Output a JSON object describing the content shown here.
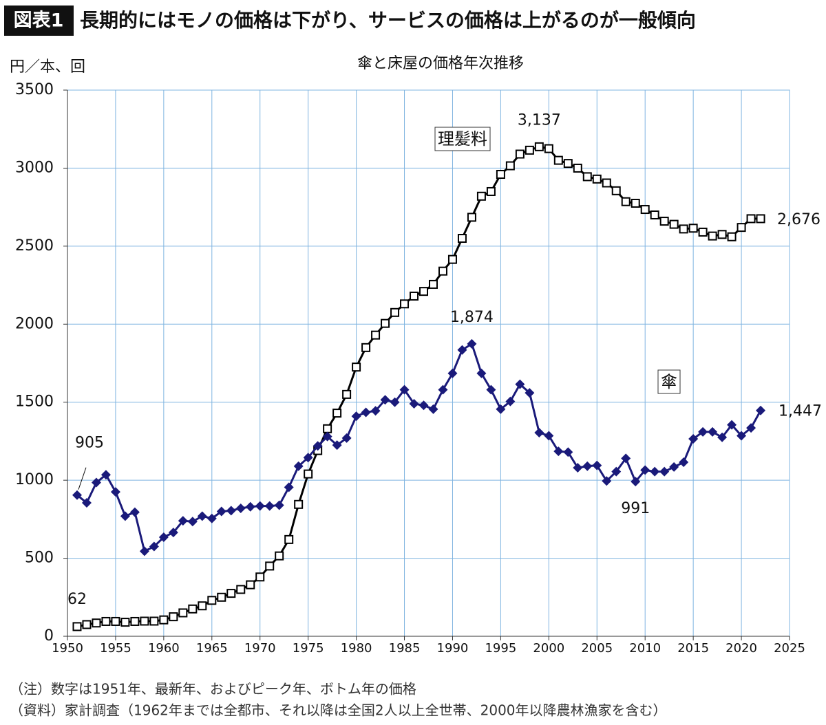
{
  "header": {
    "badge": "図表1",
    "title": "長期的にはモノの価格は下がり、サービスの価格は上がるのが一般傾向"
  },
  "chart_data": {
    "type": "line",
    "title": "傘と床屋の価格年次推移",
    "y_label": "円／本、回",
    "x": [
      1951,
      1952,
      1953,
      1954,
      1955,
      1956,
      1957,
      1958,
      1959,
      1960,
      1961,
      1962,
      1963,
      1964,
      1965,
      1966,
      1967,
      1968,
      1969,
      1970,
      1971,
      1972,
      1973,
      1974,
      1975,
      1976,
      1977,
      1978,
      1979,
      1980,
      1981,
      1982,
      1983,
      1984,
      1985,
      1986,
      1987,
      1988,
      1989,
      1990,
      1991,
      1992,
      1993,
      1994,
      1995,
      1996,
      1997,
      1998,
      1999,
      2000,
      2001,
      2002,
      2003,
      2004,
      2005,
      2006,
      2007,
      2008,
      2009,
      2010,
      2011,
      2012,
      2013,
      2014,
      2015,
      2016,
      2017,
      2018,
      2019,
      2020,
      2021,
      2022
    ],
    "series": [
      {
        "name": "理髪料",
        "color": "#000000",
        "marker": "square",
        "values": [
          62,
          75,
          85,
          95,
          95,
          90,
          95,
          97,
          97,
          105,
          125,
          150,
          175,
          195,
          230,
          250,
          275,
          300,
          330,
          380,
          450,
          515,
          620,
          845,
          1040,
          1190,
          1330,
          1430,
          1550,
          1725,
          1850,
          1930,
          2005,
          2075,
          2130,
          2180,
          2210,
          2255,
          2340,
          2415,
          2550,
          2685,
          2820,
          2850,
          2960,
          3015,
          3090,
          3115,
          3137,
          3125,
          3050,
          3030,
          3000,
          2945,
          2930,
          2905,
          2855,
          2785,
          2775,
          2735,
          2700,
          2660,
          2640,
          2610,
          2615,
          2590,
          2565,
          2575,
          2560,
          2620,
          2676,
          2676
        ],
        "value_labels": [
          "62",
          null,
          null,
          null,
          null,
          null,
          null,
          null,
          null,
          null,
          null,
          null,
          null,
          null,
          null,
          null,
          null,
          null,
          null,
          null,
          null,
          null,
          null,
          null,
          null,
          null,
          null,
          null,
          null,
          null,
          null,
          null,
          null,
          null,
          null,
          null,
          null,
          null,
          null,
          null,
          null,
          null,
          null,
          null,
          null,
          null,
          null,
          null,
          "3,137",
          null,
          null,
          null,
          null,
          null,
          null,
          null,
          null,
          null,
          null,
          null,
          null,
          null,
          null,
          null,
          null,
          null,
          null,
          null,
          null,
          null,
          null,
          "2,676"
        ]
      },
      {
        "name": "傘",
        "color": "#1a1a7a",
        "marker": "diamond",
        "values": [
          905,
          855,
          985,
          1035,
          925,
          770,
          795,
          545,
          575,
          635,
          665,
          740,
          735,
          770,
          755,
          800,
          805,
          820,
          830,
          835,
          835,
          840,
          955,
          1090,
          1145,
          1220,
          1280,
          1225,
          1270,
          1410,
          1435,
          1445,
          1515,
          1500,
          1580,
          1490,
          1480,
          1455,
          1580,
          1685,
          1835,
          1874,
          1685,
          1580,
          1455,
          1505,
          1615,
          1560,
          1305,
          1285,
          1185,
          1180,
          1080,
          1090,
          1095,
          995,
          1055,
          1140,
          991,
          1065,
          1055,
          1055,
          1085,
          1115,
          1265,
          1310,
          1310,
          1275,
          1355,
          1285,
          1335,
          1447
        ],
        "value_labels": [
          "905",
          null,
          null,
          null,
          null,
          null,
          null,
          null,
          null,
          null,
          null,
          null,
          null,
          null,
          null,
          null,
          null,
          null,
          null,
          null,
          null,
          null,
          null,
          null,
          null,
          null,
          null,
          null,
          null,
          null,
          null,
          null,
          null,
          null,
          null,
          null,
          null,
          null,
          null,
          null,
          null,
          "1,874",
          null,
          null,
          null,
          null,
          null,
          null,
          null,
          null,
          null,
          null,
          null,
          null,
          null,
          null,
          null,
          null,
          "991",
          null,
          null,
          null,
          null,
          null,
          null,
          null,
          null,
          null,
          null,
          null,
          null,
          "1,447"
        ]
      }
    ],
    "xlim": [
      1950,
      2025
    ],
    "xticks": [
      1950,
      1955,
      1960,
      1965,
      1970,
      1975,
      1980,
      1985,
      1990,
      1995,
      2000,
      2005,
      2010,
      2015,
      2020,
      2025
    ],
    "ylim": [
      0,
      3500
    ],
    "yticks": [
      0,
      500,
      1000,
      1500,
      2000,
      2500,
      3000,
      3500
    ],
    "grid": true
  },
  "notes": [
    "（注）数字は1951年、最新年、およびピーク年、ボトム年の価格",
    "（資料）家計調査（1962年までは全都市、それ以降は全国2人以上全世帯、2000年以降農林漁家を含む）"
  ]
}
